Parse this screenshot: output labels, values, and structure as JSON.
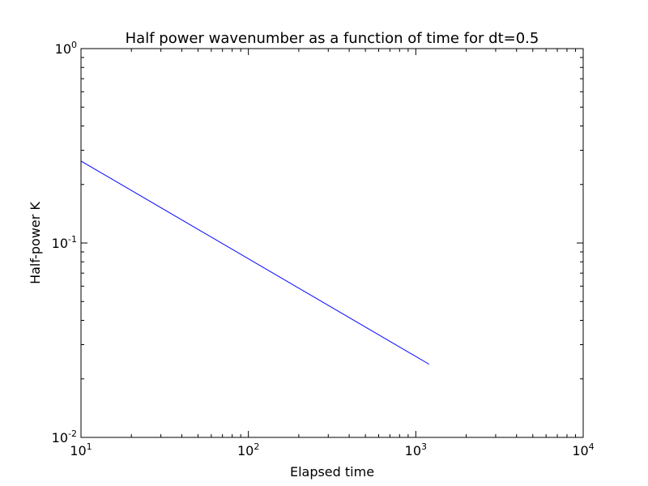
{
  "chart_data": {
    "type": "line",
    "title": "Half power wavenumber as a function of time for dt=0.5",
    "xlabel": "Elapsed time",
    "ylabel": "Half-power K",
    "xscale": "log",
    "yscale": "log",
    "xlim": [
      10,
      10000
    ],
    "ylim": [
      0.01,
      1
    ],
    "grid": false,
    "x_ticks": [
      {
        "base": "10",
        "exp": "1",
        "value": 10
      },
      {
        "base": "10",
        "exp": "2",
        "value": 100
      },
      {
        "base": "10",
        "exp": "3",
        "value": 1000
      },
      {
        "base": "10",
        "exp": "4",
        "value": 10000
      }
    ],
    "y_ticks": [
      {
        "base": "10",
        "exp": "-2",
        "value": 0.01
      },
      {
        "base": "10",
        "exp": "-1",
        "value": 0.1
      },
      {
        "base": "10",
        "exp": "0",
        "value": 1
      }
    ],
    "series": [
      {
        "color": "#0000ff",
        "x": [
          10,
          1200
        ],
        "y": [
          0.264,
          0.0238
        ]
      }
    ]
  }
}
